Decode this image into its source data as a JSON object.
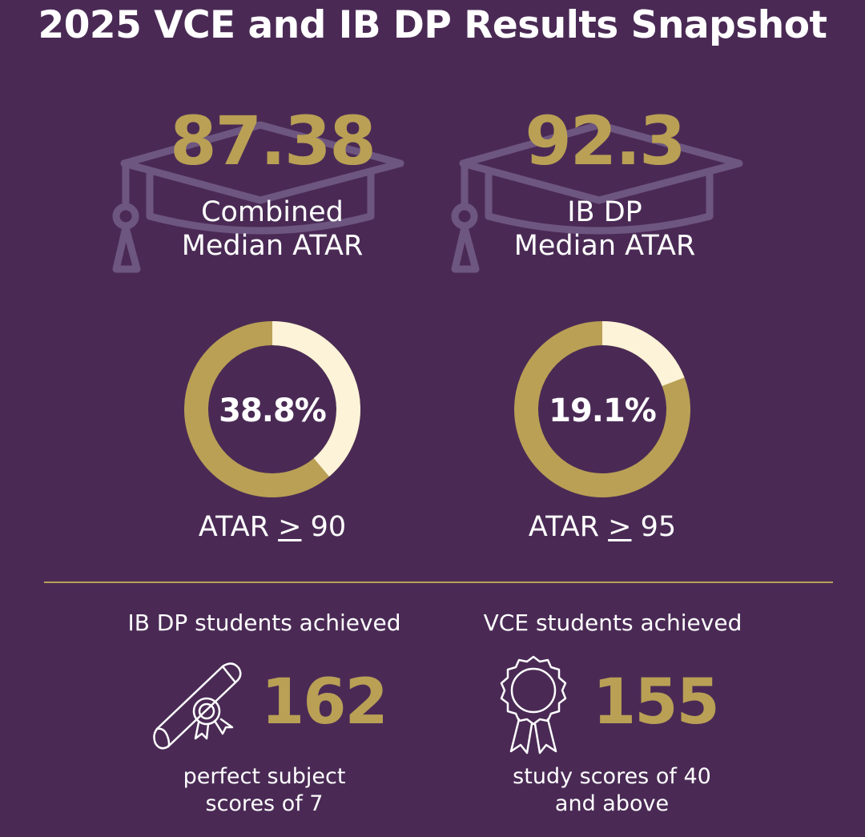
{
  "title": "2025 VCE and IB DP Results Snapshot",
  "colors": {
    "background": "#4a2a55",
    "gold": "#b9a055",
    "cream": "#fcf3d8",
    "text": "#ffffff",
    "watermark": "#6d5680"
  },
  "medians": [
    {
      "value": "87.38",
      "label_line1": "Combined",
      "label_line2": "Median ATAR",
      "icon": "graduation-cap-icon"
    },
    {
      "value": "92.3",
      "label_line1": "IB DP",
      "label_line2": "Median ATAR",
      "icon": "graduation-cap-icon"
    }
  ],
  "donuts": [
    {
      "percent": 38.8,
      "text": "38.8%",
      "label_prefix": "ATAR ",
      "label_geq": ">",
      "label_value": " 90"
    },
    {
      "percent": 19.1,
      "text": "19.1%",
      "label_prefix": "ATAR ",
      "label_geq": ">",
      "label_value": " 95"
    }
  ],
  "achievements": [
    {
      "heading": "IB DP students achieved",
      "number": "162",
      "desc_line1": "perfect subject",
      "desc_line2": "scores of 7",
      "icon": "diploma-scroll-icon"
    },
    {
      "heading": "VCE students achieved",
      "number": "155",
      "desc_line1": "study scores of 40",
      "desc_line2": "and above",
      "icon": "award-ribbon-icon"
    }
  ]
}
